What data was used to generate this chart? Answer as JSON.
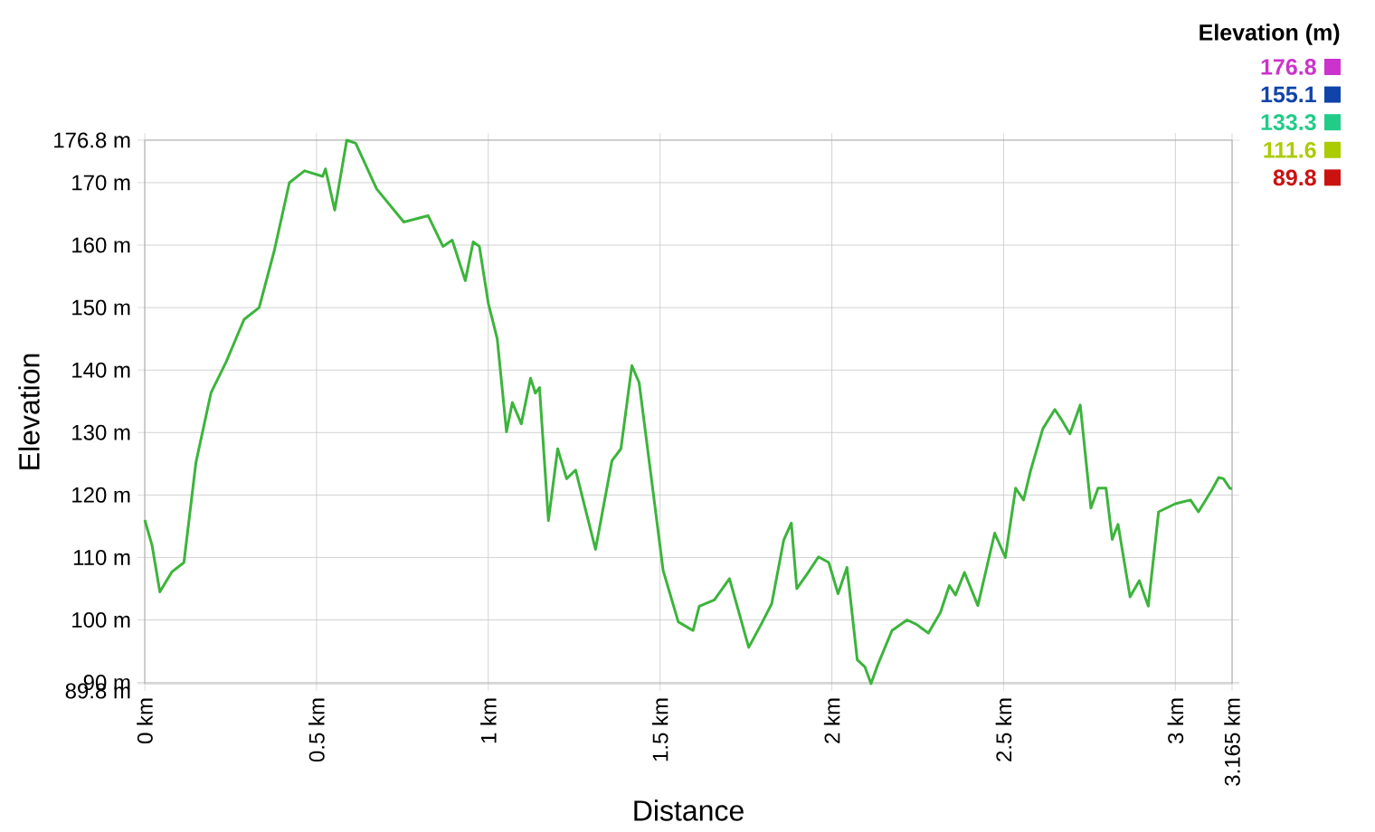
{
  "chart_data": {
    "type": "line",
    "xlabel": "Distance",
    "ylabel": "Elevation",
    "annotations": [
      "Elevation (m)",
      "176.8",
      "155.1",
      "133.3",
      "111.6",
      "89.8"
    ],
    "x": [
      0.0,
      0.021,
      0.044,
      0.079,
      0.114,
      0.149,
      0.193,
      0.237,
      0.289,
      0.333,
      0.377,
      0.421,
      0.465,
      0.518,
      0.526,
      0.553,
      0.588,
      0.614,
      0.675,
      0.754,
      0.825,
      0.868,
      0.895,
      0.933,
      0.956,
      0.974,
      1.0,
      1.026,
      1.053,
      1.07,
      1.096,
      1.123,
      1.137,
      1.149,
      1.175,
      1.202,
      1.228,
      1.254,
      1.312,
      1.36,
      1.386,
      1.418,
      1.439,
      1.509,
      1.553,
      1.596,
      1.614,
      1.658,
      1.702,
      1.758,
      1.798,
      1.825,
      1.86,
      1.882,
      1.898,
      1.93,
      1.961,
      1.991,
      2.018,
      2.044,
      2.074,
      2.096,
      2.114,
      2.132,
      2.175,
      2.219,
      2.246,
      2.281,
      2.316,
      2.342,
      2.36,
      2.386,
      2.425,
      2.474,
      2.505,
      2.535,
      2.558,
      2.579,
      2.614,
      2.649,
      2.667,
      2.693,
      2.723,
      2.754,
      2.775,
      2.798,
      2.816,
      2.833,
      2.868,
      2.895,
      2.921,
      2.951,
      3.0,
      3.044,
      3.067,
      3.105,
      3.126,
      3.14,
      3.158,
      3.165
    ],
    "values": [
      116.0,
      112.0,
      104.5,
      107.7,
      109.2,
      125.2,
      136.4,
      141.3,
      148.1,
      150.0,
      159.1,
      170.0,
      171.9,
      171.0,
      172.2,
      165.6,
      176.8,
      176.3,
      169.0,
      163.7,
      164.7,
      159.8,
      160.8,
      154.3,
      160.5,
      159.8,
      150.7,
      145.0,
      130.1,
      134.8,
      131.4,
      138.7,
      136.3,
      137.2,
      115.9,
      127.4,
      122.6,
      124.0,
      111.3,
      125.5,
      127.4,
      140.7,
      138.0,
      107.9,
      99.7,
      98.3,
      102.2,
      103.2,
      106.6,
      95.6,
      99.7,
      102.6,
      112.8,
      115.5,
      105.0,
      107.5,
      110.1,
      109.2,
      104.2,
      108.4,
      93.6,
      92.5,
      89.8,
      92.6,
      98.3,
      100.0,
      99.3,
      97.9,
      101.2,
      105.5,
      104.0,
      107.6,
      102.3,
      113.9,
      110.0,
      121.1,
      119.2,
      124.0,
      130.6,
      133.7,
      132.2,
      129.8,
      134.4,
      117.9,
      121.1,
      121.1,
      112.9,
      115.3,
      103.7,
      106.3,
      102.2,
      117.3,
      118.6,
      119.2,
      117.3,
      120.7,
      122.8,
      122.6,
      121.1,
      121.0
    ],
    "color": "#3cb43c",
    "xlim": [
      0,
      3.165
    ],
    "xticks": [
      {
        "value": 0,
        "label": "0 km"
      },
      {
        "value": 0.5,
        "label": "0.5 km"
      },
      {
        "value": 1,
        "label": "1 km"
      },
      {
        "value": 1.5,
        "label": "1.5 km"
      },
      {
        "value": 2,
        "label": "2 km"
      },
      {
        "value": 2.5,
        "label": "2.5 km"
      },
      {
        "value": 3,
        "label": "3 km"
      },
      {
        "value": 3.165,
        "label": "3.165 km"
      }
    ],
    "ylim": [
      89.8,
      176.8
    ],
    "yticks": [
      {
        "value": 89.8,
        "label": "89.8 m"
      },
      {
        "value": 90,
        "label": "90 m"
      },
      {
        "value": 100,
        "label": "100 m"
      },
      {
        "value": 110,
        "label": "110 m"
      },
      {
        "value": 120,
        "label": "120 m"
      },
      {
        "value": 130,
        "label": "130 m"
      },
      {
        "value": 140,
        "label": "140 m"
      },
      {
        "value": 150,
        "label": "150 m"
      },
      {
        "value": 160,
        "label": "160 m"
      },
      {
        "value": 170,
        "label": "170 m"
      },
      {
        "value": 176.8,
        "label": "176.8 m"
      }
    ],
    "grid": true,
    "marker": "none",
    "line_style": "solid"
  }
}
